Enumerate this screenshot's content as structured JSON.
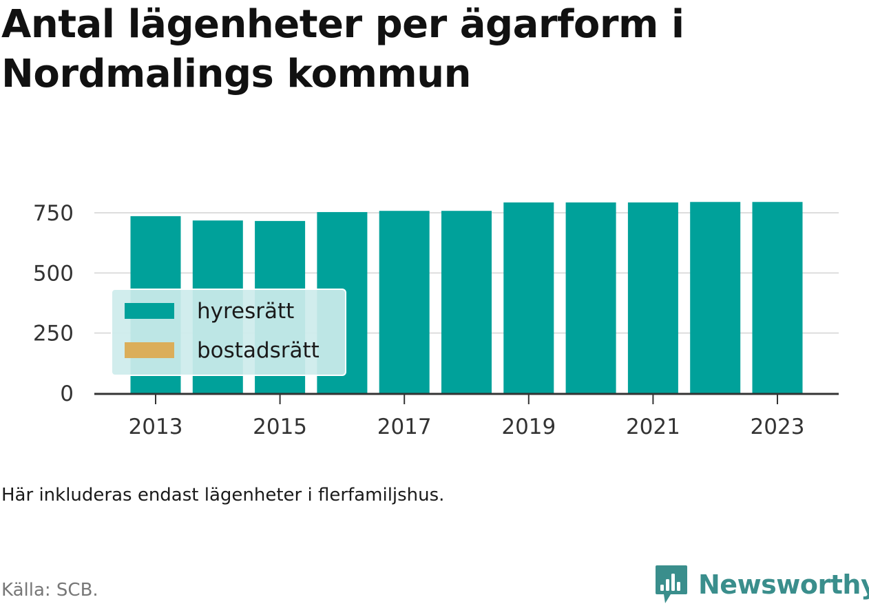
{
  "title": "Antal lägenheter per ägarform i Nordmalings kommun",
  "note": "Här inkluderas endast lägenheter i flerfamiljshus.",
  "source": "Källa: SCB.",
  "brand": {
    "name": "Newsworthy",
    "icon": "bar-chart-speech-bubble-icon",
    "color": "#3a8e8c"
  },
  "colors": {
    "hyresratt": "#00a19a",
    "bostadsratt": "#dbae5a",
    "legend_bg": "#cdeceb",
    "grid": "#dddddd",
    "axis": "#333333"
  },
  "chart_data": {
    "type": "bar",
    "stacked": true,
    "x": [
      2013,
      2014,
      2015,
      2016,
      2017,
      2018,
      2019,
      2020,
      2021,
      2022,
      2023
    ],
    "x_tick_labels": [
      "2013",
      "2015",
      "2017",
      "2019",
      "2021",
      "2023"
    ],
    "series": [
      {
        "name": "hyresrätt",
        "color": "#00a19a",
        "values": [
          736,
          718,
          716,
          753,
          758,
          758,
          793,
          793,
          793,
          795,
          795
        ]
      },
      {
        "name": "bostadsrätt",
        "color": "#dbae5a",
        "values": [
          0,
          0,
          0,
          0,
          0,
          0,
          0,
          0,
          0,
          0,
          0
        ]
      }
    ],
    "ylim": [
      0,
      800
    ],
    "y_ticks": [
      0,
      250,
      500,
      750
    ],
    "grid": true,
    "legend_position": "bottom-left",
    "xlabel": "",
    "ylabel": ""
  }
}
